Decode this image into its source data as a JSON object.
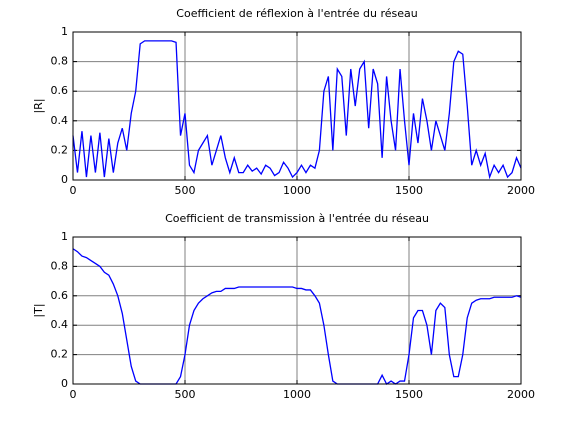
{
  "chart_data": [
    {
      "type": "line",
      "title": "Coefficient de réflexion à l'entrée du réseau",
      "ylabel": "|R|",
      "color": "#0000ff",
      "grid": true,
      "xlim": [
        0,
        2000
      ],
      "ylim": [
        0,
        1
      ],
      "xticks": [
        0,
        500,
        1000,
        1500,
        2000
      ],
      "yticks": [
        0,
        0.2,
        0.4,
        0.6,
        0.8,
        1
      ],
      "x": [
        0,
        20,
        40,
        60,
        80,
        100,
        120,
        140,
        160,
        180,
        200,
        220,
        240,
        260,
        280,
        300,
        320,
        340,
        360,
        380,
        400,
        420,
        440,
        460,
        480,
        500,
        520,
        540,
        560,
        580,
        600,
        620,
        640,
        660,
        680,
        700,
        720,
        740,
        760,
        780,
        800,
        820,
        840,
        860,
        880,
        900,
        920,
        940,
        960,
        980,
        1000,
        1020,
        1040,
        1060,
        1080,
        1100,
        1120,
        1140,
        1160,
        1180,
        1200,
        1220,
        1240,
        1260,
        1280,
        1300,
        1320,
        1340,
        1360,
        1380,
        1400,
        1420,
        1440,
        1460,
        1480,
        1500,
        1520,
        1540,
        1560,
        1580,
        1600,
        1620,
        1640,
        1660,
        1680,
        1700,
        1720,
        1740,
        1760,
        1780,
        1800,
        1820,
        1840,
        1860,
        1880,
        1900,
        1920,
        1940,
        1960,
        1980,
        2000
      ],
      "values": [
        0.3,
        0.05,
        0.33,
        0.02,
        0.3,
        0.05,
        0.32,
        0.02,
        0.28,
        0.05,
        0.25,
        0.35,
        0.2,
        0.45,
        0.6,
        0.92,
        0.94,
        0.94,
        0.94,
        0.94,
        0.94,
        0.94,
        0.94,
        0.93,
        0.3,
        0.45,
        0.1,
        0.05,
        0.2,
        0.25,
        0.3,
        0.1,
        0.2,
        0.3,
        0.15,
        0.05,
        0.15,
        0.05,
        0.05,
        0.1,
        0.06,
        0.08,
        0.04,
        0.1,
        0.08,
        0.03,
        0.05,
        0.12,
        0.08,
        0.02,
        0.05,
        0.1,
        0.05,
        0.1,
        0.08,
        0.2,
        0.6,
        0.7,
        0.2,
        0.75,
        0.7,
        0.3,
        0.75,
        0.5,
        0.75,
        0.8,
        0.35,
        0.75,
        0.65,
        0.15,
        0.7,
        0.4,
        0.2,
        0.75,
        0.4,
        0.1,
        0.45,
        0.25,
        0.55,
        0.4,
        0.2,
        0.4,
        0.3,
        0.2,
        0.45,
        0.8,
        0.87,
        0.85,
        0.5,
        0.1,
        0.2,
        0.1,
        0.18,
        0.02,
        0.1,
        0.05,
        0.1,
        0.02,
        0.05,
        0.15,
        0.08
      ]
    },
    {
      "type": "line",
      "title": "Coefficient de transmission à l'entrée du réseau",
      "ylabel": "|T|",
      "color": "#0000ff",
      "grid": true,
      "xlim": [
        0,
        2000
      ],
      "ylim": [
        0,
        1
      ],
      "xticks": [
        0,
        500,
        1000,
        1500,
        2000
      ],
      "yticks": [
        0,
        0.2,
        0.4,
        0.6,
        0.8,
        1
      ],
      "x": [
        0,
        20,
        40,
        60,
        80,
        100,
        120,
        140,
        160,
        180,
        200,
        220,
        240,
        260,
        280,
        300,
        320,
        340,
        360,
        380,
        400,
        420,
        440,
        460,
        480,
        500,
        520,
        540,
        560,
        580,
        600,
        620,
        640,
        660,
        680,
        700,
        720,
        740,
        760,
        780,
        800,
        820,
        840,
        860,
        880,
        900,
        920,
        940,
        960,
        980,
        1000,
        1020,
        1040,
        1060,
        1080,
        1100,
        1120,
        1140,
        1160,
        1180,
        1200,
        1220,
        1240,
        1260,
        1280,
        1300,
        1320,
        1340,
        1360,
        1380,
        1400,
        1420,
        1440,
        1460,
        1480,
        1500,
        1520,
        1540,
        1560,
        1580,
        1600,
        1620,
        1640,
        1660,
        1680,
        1700,
        1720,
        1740,
        1760,
        1780,
        1800,
        1820,
        1840,
        1860,
        1880,
        1900,
        1920,
        1940,
        1960,
        1980,
        2000
      ],
      "values": [
        0.92,
        0.9,
        0.87,
        0.86,
        0.84,
        0.82,
        0.8,
        0.76,
        0.74,
        0.68,
        0.6,
        0.48,
        0.3,
        0.12,
        0.02,
        0,
        0,
        0,
        0,
        0,
        0,
        0,
        0,
        0,
        0.05,
        0.2,
        0.4,
        0.5,
        0.55,
        0.58,
        0.6,
        0.62,
        0.63,
        0.63,
        0.65,
        0.65,
        0.65,
        0.66,
        0.66,
        0.66,
        0.66,
        0.66,
        0.66,
        0.66,
        0.66,
        0.66,
        0.66,
        0.66,
        0.66,
        0.66,
        0.65,
        0.65,
        0.64,
        0.64,
        0.6,
        0.55,
        0.4,
        0.2,
        0.02,
        0,
        0,
        0,
        0,
        0,
        0,
        0,
        0,
        0,
        0,
        0.06,
        0,
        0.02,
        0,
        0.02,
        0.02,
        0.2,
        0.45,
        0.5,
        0.5,
        0.4,
        0.2,
        0.5,
        0.55,
        0.52,
        0.2,
        0.05,
        0.05,
        0.2,
        0.45,
        0.55,
        0.57,
        0.58,
        0.58,
        0.58,
        0.59,
        0.59,
        0.59,
        0.59,
        0.59,
        0.6,
        0.59
      ]
    }
  ]
}
